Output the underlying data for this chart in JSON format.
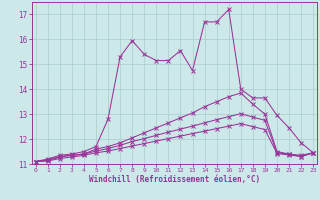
{
  "xlabel": "Windchill (Refroidissement éolien,°C)",
  "bg_color": "#cce8e8",
  "grid_color": "#aacccc",
  "line_color": "#993399",
  "xlim": [
    -0.3,
    23.3
  ],
  "ylim": [
    11.0,
    17.5
  ],
  "yticks": [
    11,
    12,
    13,
    14,
    15,
    16,
    17
  ],
  "xticks": [
    0,
    1,
    2,
    3,
    4,
    5,
    6,
    7,
    8,
    9,
    10,
    11,
    12,
    13,
    14,
    15,
    16,
    17,
    18,
    19,
    20,
    21,
    22,
    23
  ],
  "lines": [
    {
      "x": [
        0,
        1,
        2,
        3,
        4,
        5,
        6,
        7,
        8,
        9,
        10,
        11,
        12,
        13,
        14,
        15,
        16,
        17,
        18,
        19,
        20,
        21,
        22,
        23
      ],
      "y": [
        11.1,
        11.2,
        11.35,
        11.4,
        11.5,
        11.7,
        12.8,
        15.3,
        15.95,
        15.4,
        15.15,
        15.15,
        15.55,
        14.75,
        16.7,
        16.7,
        17.2,
        14.0,
        13.65,
        13.65,
        12.95,
        12.45,
        11.85,
        11.45
      ]
    },
    {
      "x": [
        0,
        1,
        2,
        3,
        4,
        5,
        6,
        7,
        8,
        9,
        10,
        11,
        12,
        13,
        14,
        15,
        16,
        17,
        18,
        19,
        20,
        21,
        22,
        23
      ],
      "y": [
        11.1,
        11.15,
        11.3,
        11.35,
        11.4,
        11.6,
        11.7,
        11.85,
        12.05,
        12.25,
        12.45,
        12.65,
        12.85,
        13.05,
        13.3,
        13.5,
        13.7,
        13.85,
        13.4,
        13.0,
        11.5,
        11.4,
        11.3,
        11.45
      ]
    },
    {
      "x": [
        0,
        1,
        2,
        3,
        4,
        5,
        6,
        7,
        8,
        9,
        10,
        11,
        12,
        13,
        14,
        15,
        16,
        17,
        18,
        19,
        20,
        21,
        22,
        23
      ],
      "y": [
        11.1,
        11.15,
        11.28,
        11.35,
        11.4,
        11.52,
        11.62,
        11.75,
        11.9,
        12.02,
        12.15,
        12.28,
        12.4,
        12.52,
        12.65,
        12.78,
        12.9,
        13.02,
        12.88,
        12.75,
        11.45,
        11.4,
        11.35,
        11.45
      ]
    },
    {
      "x": [
        0,
        1,
        2,
        3,
        4,
        5,
        6,
        7,
        8,
        9,
        10,
        11,
        12,
        13,
        14,
        15,
        16,
        17,
        18,
        19,
        20,
        21,
        22,
        23
      ],
      "y": [
        11.1,
        11.12,
        11.22,
        11.28,
        11.35,
        11.45,
        11.52,
        11.62,
        11.72,
        11.82,
        11.92,
        12.02,
        12.12,
        12.22,
        12.32,
        12.42,
        12.52,
        12.62,
        12.5,
        12.38,
        11.42,
        11.36,
        11.3,
        11.45
      ]
    }
  ]
}
